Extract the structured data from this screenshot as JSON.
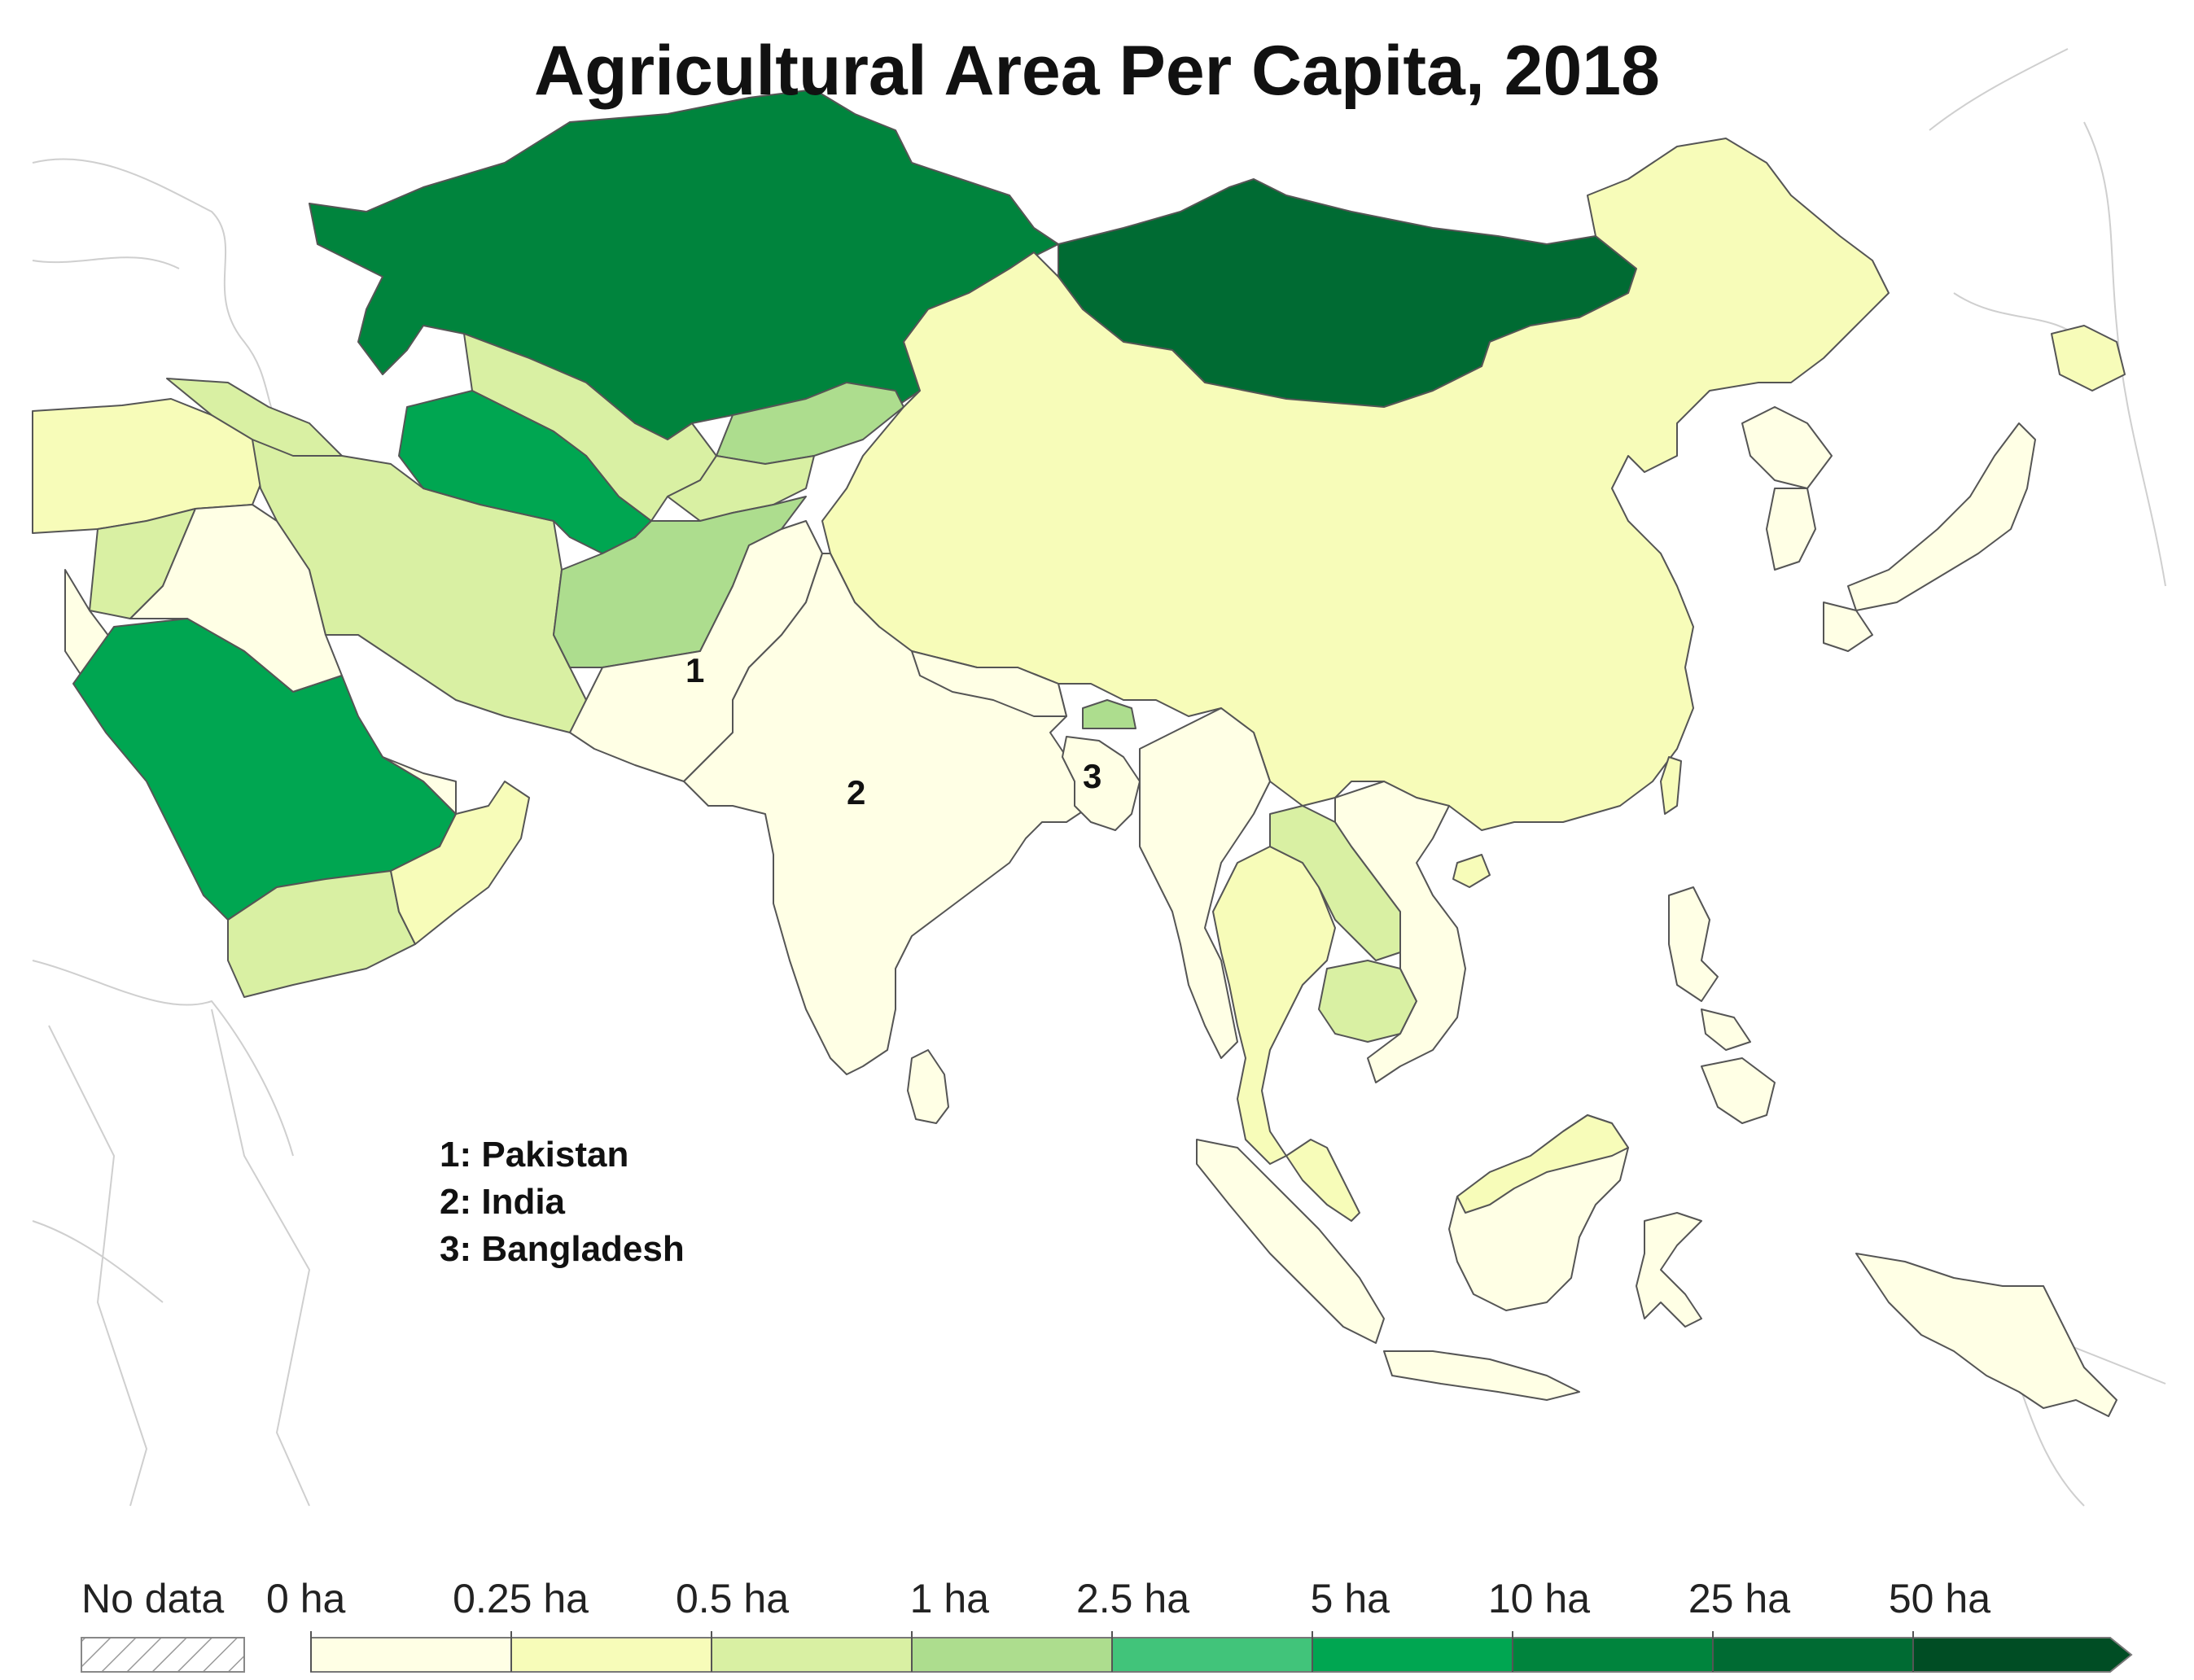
{
  "title": "Agricultural Area Per Capita, 2018",
  "map_labels": [
    {
      "number": "1",
      "country": "Pakistan"
    },
    {
      "number": "2",
      "country": "India"
    },
    {
      "number": "3",
      "country": "Bangladesh"
    }
  ],
  "country_notes": [
    "1: Pakistan",
    "2: India",
    "3: Bangladesh"
  ],
  "legend": {
    "no_data_label": "No data",
    "bins": [
      {
        "label": "0 ha",
        "color": "#ffffe5"
      },
      {
        "label": "0.25 ha",
        "color": "#f7fcb9"
      },
      {
        "label": "0.5 ha",
        "color": "#d9f0a3"
      },
      {
        "label": "1 ha",
        "color": "#addd8e"
      },
      {
        "label": "2.5 ha",
        "color": "#41c47a"
      },
      {
        "label": "5 ha",
        "color": "#00a651"
      },
      {
        "label": "10 ha",
        "color": "#00843d"
      },
      {
        "label": "25 ha",
        "color": "#006b33"
      },
      {
        "label": "50 ha",
        "color": "#004d24"
      }
    ]
  }
}
